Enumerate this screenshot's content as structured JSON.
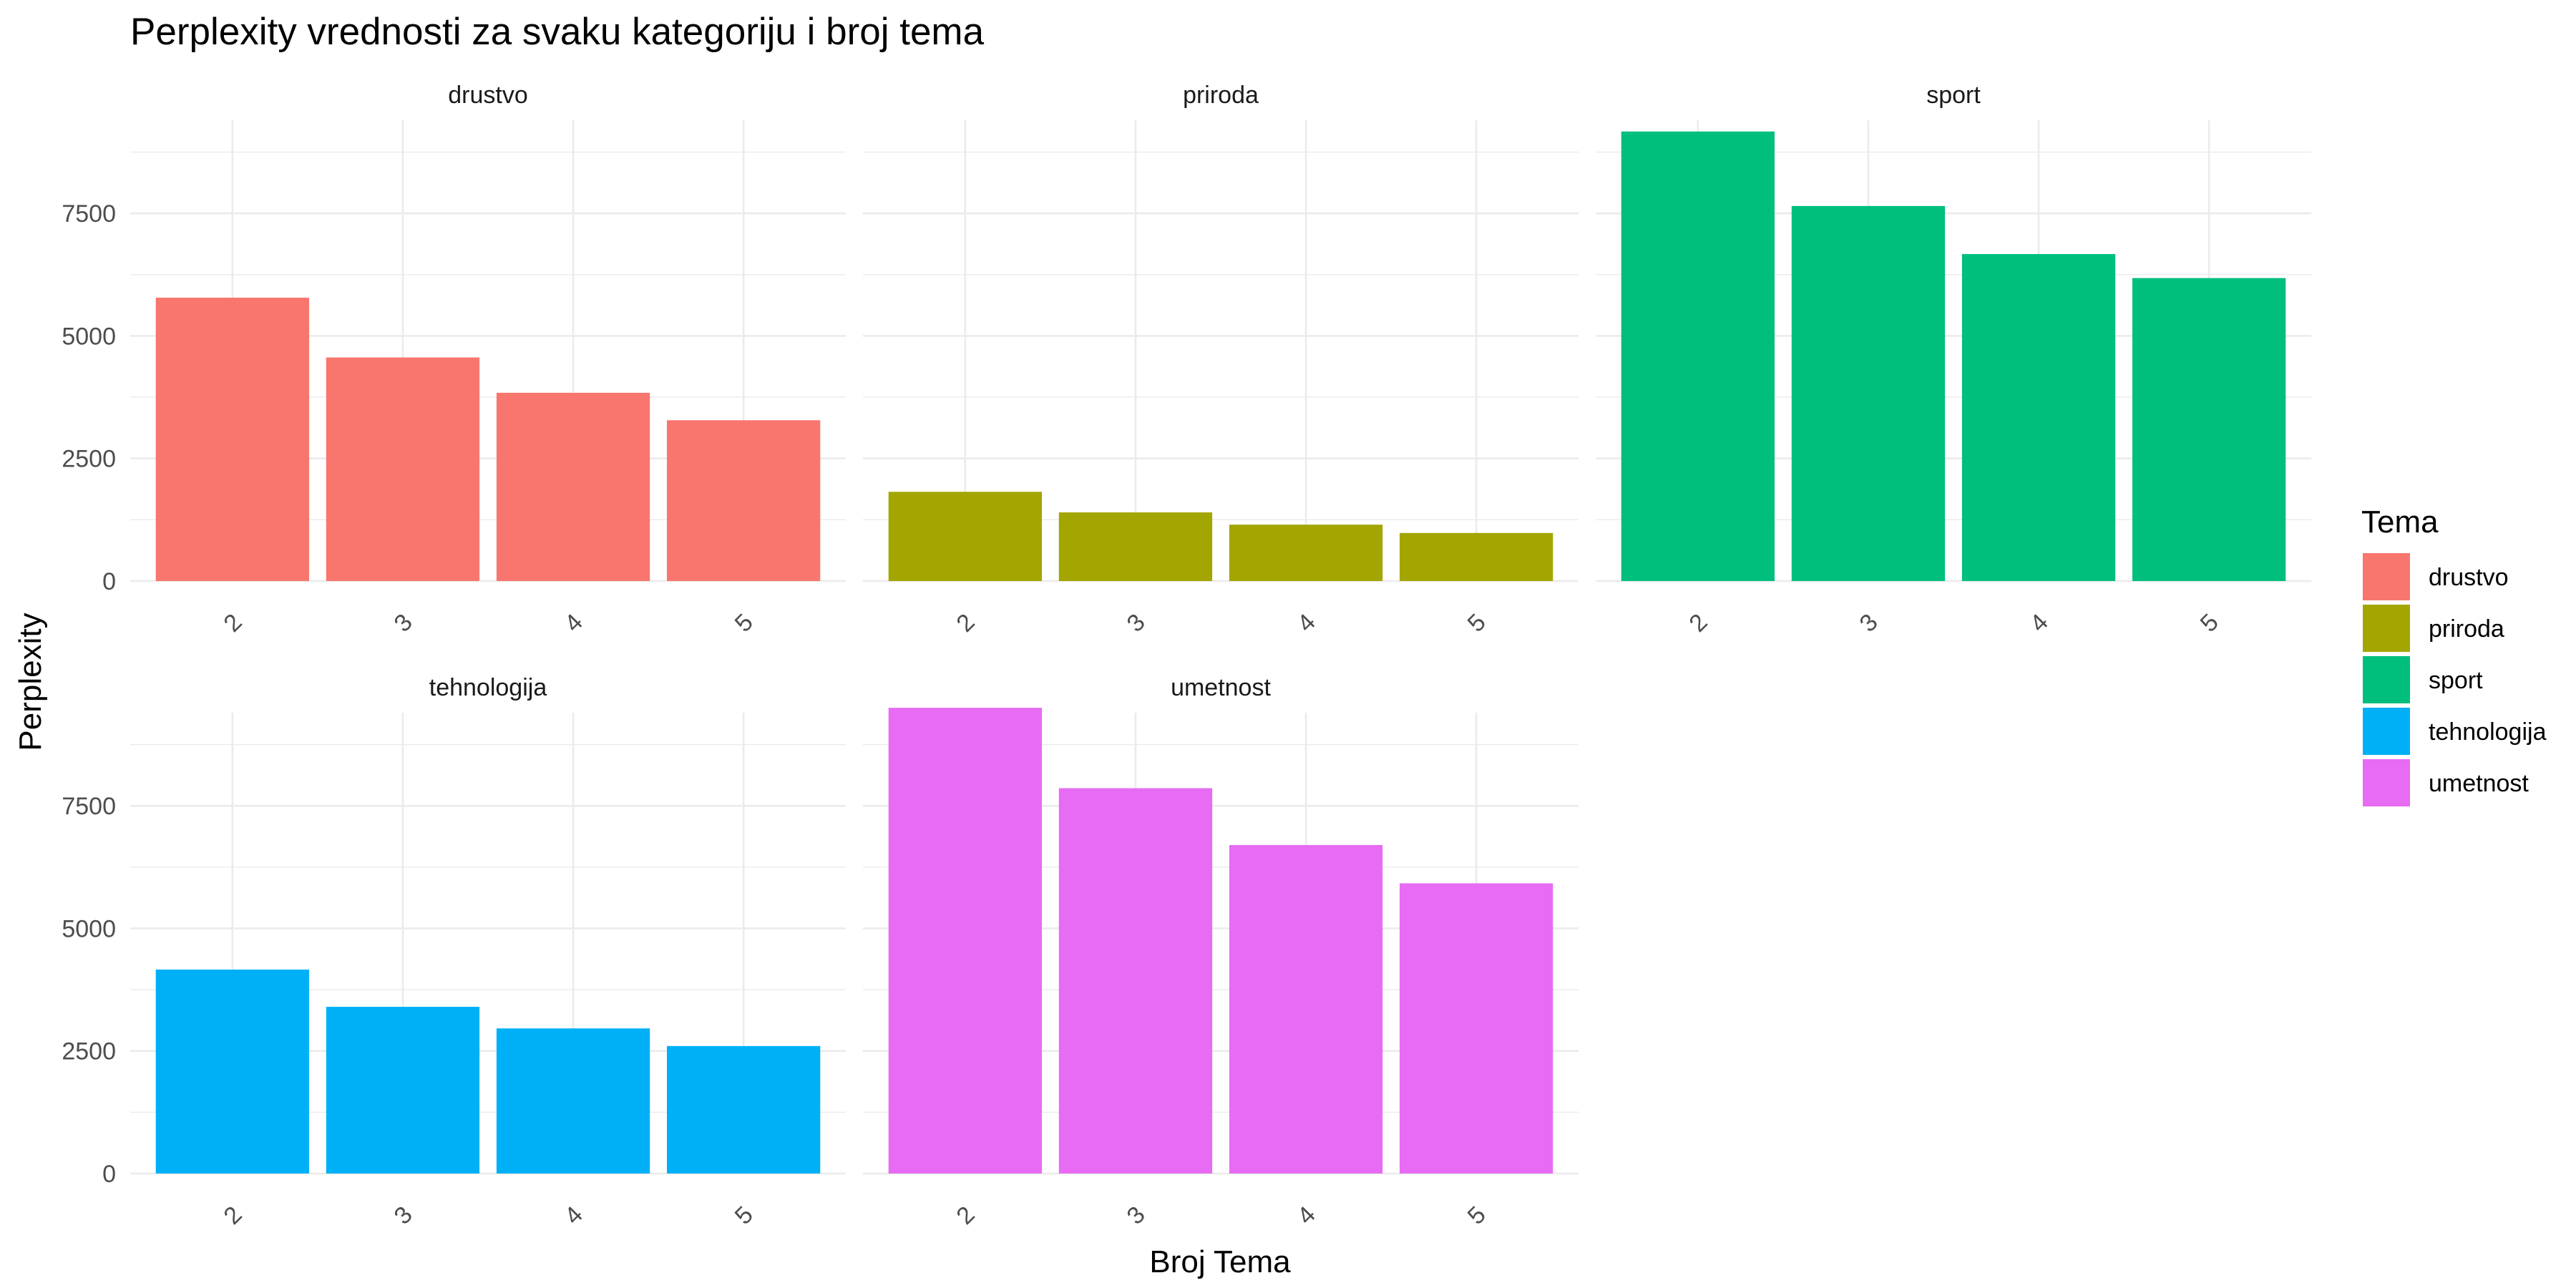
{
  "chart_data": {
    "type": "bar",
    "title": "Perplexity vrednosti za svaku kategoriju i broj tema",
    "xlabel": "Broj Tema",
    "ylabel": "Perplexity",
    "categories": [
      "2",
      "3",
      "4",
      "5"
    ],
    "ylim": [
      0,
      9400
    ],
    "y_ticks": [
      0,
      2500,
      5000,
      7500
    ],
    "y_tick_labels": [
      "0",
      "2500",
      "5000",
      "7500"
    ],
    "grid": true,
    "facet_layout": "wrap, 3 columns, 2 rows",
    "series": [
      {
        "name": "drustvo",
        "color": "#F8766D",
        "values": [
          5780,
          4560,
          3840,
          3280
        ]
      },
      {
        "name": "priroda",
        "color": "#A3A500",
        "values": [
          1820,
          1400,
          1150,
          980
        ]
      },
      {
        "name": "sport",
        "color": "#00BF7D",
        "values": [
          9170,
          7650,
          6670,
          6180
        ]
      },
      {
        "name": "tehnologija",
        "color": "#00B0F6",
        "values": [
          4160,
          3400,
          2960,
          2600
        ]
      },
      {
        "name": "umetnost",
        "color": "#E76BF3",
        "values": [
          9500,
          7860,
          6700,
          5920
        ]
      }
    ],
    "legend": {
      "title": "Tema",
      "position": "right"
    }
  }
}
